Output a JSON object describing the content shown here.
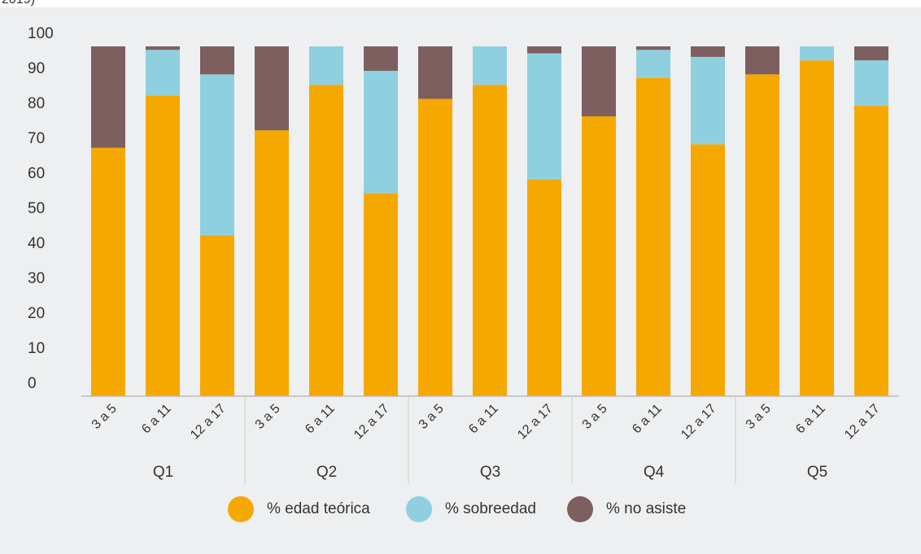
{
  "chart_data": {
    "type": "stacked_bar",
    "subtitle": "2019)",
    "groups": [
      "Q1",
      "Q2",
      "Q3",
      "Q4",
      "Q5"
    ],
    "categories": [
      "3 a 5",
      "6 a 11",
      "12 a 17",
      "3 a 5",
      "6 a 11",
      "12 a 17",
      "3 a 5",
      "6 a 11",
      "12 a 17",
      "3 a 5",
      "6 a 11",
      "12 a 17",
      "3 a 5",
      "6 a 11",
      "12 a 17"
    ],
    "series": [
      {
        "name": "% edad teórica",
        "color": "#f5a800",
        "values": [
          71,
          86,
          46,
          76,
          89,
          58,
          85,
          89,
          62,
          80,
          91,
          72,
          92,
          96,
          83
        ]
      },
      {
        "name": "% sobreedad",
        "color": "#8fd0e0",
        "values": [
          0,
          13,
          46,
          0,
          11,
          35,
          0,
          11,
          36,
          0,
          8,
          25,
          0,
          4,
          13
        ]
      },
      {
        "name": "% no asiste",
        "color": "#7d5f60",
        "values": [
          29,
          1,
          8,
          24,
          0,
          7,
          15,
          0,
          2,
          20,
          1,
          3,
          8,
          0,
          4
        ]
      }
    ],
    "ylim": [
      0,
      100
    ],
    "yticks": [
      0,
      10,
      20,
      30,
      40,
      50,
      60,
      70,
      80,
      90,
      100
    ],
    "grid": false,
    "legend": "bottom"
  }
}
